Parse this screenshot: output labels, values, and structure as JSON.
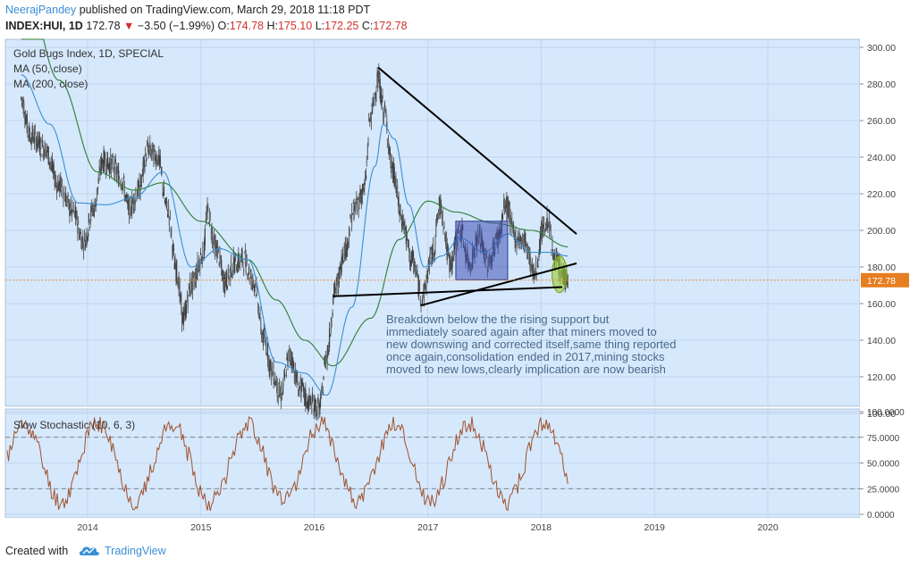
{
  "header": {
    "author": "NeerajPandey",
    "published": "published on TradingView.com, March 29, 2018 11:18 PDT",
    "symbol": "INDEX:HUI, 1D",
    "last": "172.78",
    "change": "−3.50 (−1.99%)",
    "o_label": "O:",
    "open": "174.78",
    "h_label": "H:",
    "high": "175.10",
    "l_label": "L:",
    "low": "172.25",
    "c_label": "C:",
    "close": "172.78"
  },
  "footer": {
    "created_with": "Created with",
    "brand": "TradingView"
  },
  "colors": {
    "background": "#d6e8fc",
    "candle": "#444444",
    "ma50": "#3a8fd0",
    "ma200": "#2e7d32",
    "stochastic": "#a0522d",
    "price_line": "#e67e22",
    "box": "#3f51b5",
    "ellipse": "#9acd32",
    "author": "#3b8fd6"
  },
  "chart_data": [
    {
      "type": "line",
      "title": "Gold Bugs Index, 1D, SPECIAL",
      "legend": [
        "MA (50, close)",
        "MA (200, close)"
      ],
      "legend_position": "top-left",
      "x_ticks": [
        "2014",
        "2015",
        "2016",
        "2017",
        "2018",
        "2019",
        "2020"
      ],
      "y_ticks": [
        "300.00",
        "280.00",
        "260.00",
        "240.00",
        "220.00",
        "200.00",
        "180.00",
        "160.00",
        "140.00",
        "120.00",
        "100.00"
      ],
      "ylim": [
        92,
        304
      ],
      "grid": true,
      "last_price_label": "172.78",
      "series": [
        {
          "name": "INDEX:HUI",
          "points": [
            [
              "2013-06-01",
              272
            ],
            [
              "2013-07-01",
              252
            ],
            [
              "2013-08-15",
              245
            ],
            [
              "2013-10-01",
              225
            ],
            [
              "2013-11-15",
              210
            ],
            [
              "2013-12-20",
              194
            ],
            [
              "2014-01-20",
              212
            ],
            [
              "2014-02-20",
              238
            ],
            [
              "2014-03-20",
              236
            ],
            [
              "2014-04-20",
              228
            ],
            [
              "2014-05-15",
              212
            ],
            [
              "2014-06-15",
              222
            ],
            [
              "2014-07-15",
              244
            ],
            [
              "2014-08-15",
              240
            ],
            [
              "2014-09-15",
              212
            ],
            [
              "2014-10-15",
              178
            ],
            [
              "2014-11-05",
              152
            ],
            [
              "2014-12-01",
              170
            ],
            [
              "2015-01-10",
              188
            ],
            [
              "2015-01-22",
              210
            ],
            [
              "2015-02-20",
              190
            ],
            [
              "2015-03-20",
              172
            ],
            [
              "2015-04-20",
              182
            ],
            [
              "2015-05-20",
              184
            ],
            [
              "2015-06-20",
              172
            ],
            [
              "2015-07-25",
              140
            ],
            [
              "2015-08-20",
              122
            ],
            [
              "2015-09-15",
              110
            ],
            [
              "2015-10-15",
              132
            ],
            [
              "2015-11-15",
              114
            ],
            [
              "2015-12-15",
              106
            ],
            [
              "2016-01-19",
              103
            ],
            [
              "2016-02-10",
              132
            ],
            [
              "2016-03-10",
              168
            ],
            [
              "2016-04-10",
              190
            ],
            [
              "2016-05-10",
              212
            ],
            [
              "2016-06-10",
              222
            ],
            [
              "2016-07-01",
              262
            ],
            [
              "2016-07-25",
              282
            ],
            [
              "2016-08-15",
              264
            ],
            [
              "2016-09-10",
              232
            ],
            [
              "2016-10-10",
              206
            ],
            [
              "2016-11-10",
              184
            ],
            [
              "2016-12-15",
              164
            ],
            [
              "2017-01-15",
              186
            ],
            [
              "2017-02-10",
              213
            ],
            [
              "2017-03-15",
              182
            ],
            [
              "2017-04-15",
              200
            ],
            [
              "2017-05-15",
              182
            ],
            [
              "2017-06-15",
              196
            ],
            [
              "2017-07-15",
              182
            ],
            [
              "2017-08-15",
              196
            ],
            [
              "2017-09-10",
              214
            ],
            [
              "2017-10-10",
              196
            ],
            [
              "2017-11-10",
              194
            ],
            [
              "2017-12-10",
              176
            ],
            [
              "2018-01-10",
              202
            ],
            [
              "2018-01-25",
              206
            ],
            [
              "2018-02-10",
              186
            ],
            [
              "2018-03-10",
              176
            ],
            [
              "2018-03-29",
              172.78
            ]
          ]
        },
        {
          "name": "MA (50, close)",
          "points": [
            [
              "2013-06-01",
              285
            ],
            [
              "2013-09-01",
              258
            ],
            [
              "2013-12-01",
              215
            ],
            [
              "2014-03-01",
              214
            ],
            [
              "2014-06-01",
              218
            ],
            [
              "2014-09-01",
              232
            ],
            [
              "2014-12-01",
              180
            ],
            [
              "2015-03-01",
              190
            ],
            [
              "2015-06-01",
              184
            ],
            [
              "2015-09-01",
              128
            ],
            [
              "2015-12-01",
              122
            ],
            [
              "2016-02-10",
              110
            ],
            [
              "2016-05-01",
              158
            ],
            [
              "2016-07-15",
              235
            ],
            [
              "2016-08-10",
              258
            ],
            [
              "2016-09-15",
              250
            ],
            [
              "2016-11-01",
              214
            ],
            [
              "2016-12-20",
              180
            ],
            [
              "2017-02-15",
              186
            ],
            [
              "2017-04-15",
              196
            ],
            [
              "2017-07-01",
              188
            ],
            [
              "2017-09-15",
              198
            ],
            [
              "2017-12-01",
              188
            ],
            [
              "2018-01-25",
              188
            ],
            [
              "2018-03-29",
              186
            ]
          ]
        },
        {
          "name": "MA (200, close)",
          "points": [
            [
              "2013-06-01",
              345
            ],
            [
              "2013-10-01",
              282
            ],
            [
              "2014-02-01",
              232
            ],
            [
              "2014-06-01",
              222
            ],
            [
              "2014-09-01",
              226
            ],
            [
              "2015-01-01",
              205
            ],
            [
              "2015-06-01",
              184
            ],
            [
              "2015-09-01",
              162
            ],
            [
              "2015-12-01",
              140
            ],
            [
              "2016-03-01",
              126
            ],
            [
              "2016-07-01",
              152
            ],
            [
              "2016-10-01",
              195
            ],
            [
              "2017-01-01",
              216
            ],
            [
              "2017-04-01",
              210
            ],
            [
              "2017-08-01",
              204
            ],
            [
              "2017-12-01",
              200
            ],
            [
              "2018-03-29",
              191
            ]
          ]
        }
      ],
      "annotation": [
        "Breakdown below the the rising support but",
        "immediately soared again after that miners moved to",
        "new downswing and corrected itself,same thing reported",
        "once again,consolidation ended in 2017,mining stocks",
        "moved to new lows,clearly implication are now bearish"
      ],
      "trendlines": [
        {
          "from": [
            "2016-07-25",
            289
          ],
          "to": [
            "2018-04-25",
            198
          ]
        },
        {
          "from": [
            "2016-12-10",
            159
          ],
          "to": [
            "2018-04-25",
            182
          ]
        },
        {
          "from": [
            "2016-03-01",
            164
          ],
          "to": [
            "2018-03-10",
            169
          ]
        }
      ],
      "box": {
        "x": [
          "2017-04-01",
          "2017-09-15"
        ],
        "y": [
          173,
          205
        ]
      },
      "ellipse": {
        "x": [
          "2018-02-05",
          "2018-03-25"
        ],
        "y": [
          166,
          186
        ]
      }
    },
    {
      "type": "line",
      "title": "Slow Stochastic (10, 6, 3)",
      "y_ticks": [
        "100.0000",
        "75.0000",
        "50.0000",
        "25.0000",
        "0.0000"
      ],
      "ylim": [
        -2,
        102
      ],
      "reference_lines": [
        75,
        25
      ]
    }
  ]
}
